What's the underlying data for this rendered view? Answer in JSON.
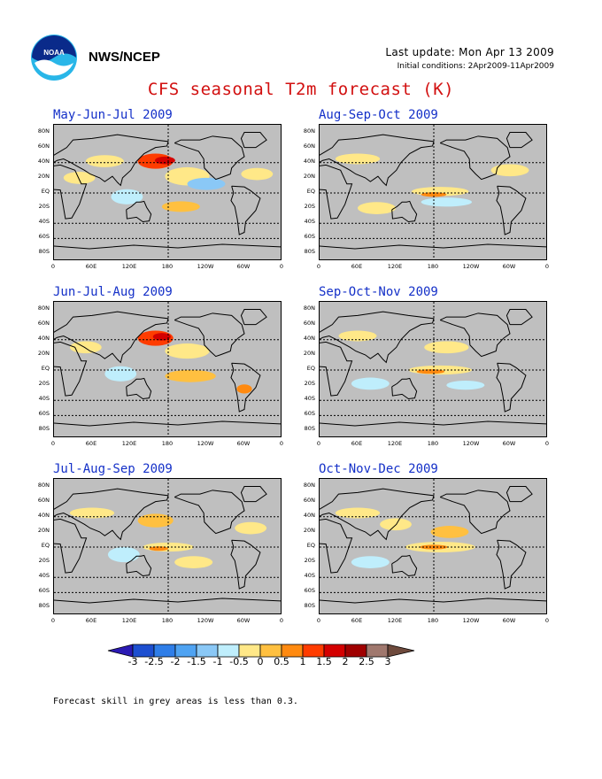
{
  "header": {
    "org": "NWS/NCEP",
    "last_update": "Last update: Mon Apr 13 2009",
    "initial_conditions": "Initial conditions: 2Apr2009-11Apr2009",
    "title": "CFS seasonal T2m forecast (K)"
  },
  "logo": {
    "name": "noaa-logo",
    "text": "NOAA"
  },
  "axes": {
    "lat_labels": [
      "80N",
      "60N",
      "40N",
      "20N",
      "EQ",
      "20S",
      "40S",
      "60S",
      "80S"
    ],
    "lon_labels": [
      "0",
      "60E",
      "120E",
      "180",
      "120W",
      "60W",
      "0"
    ]
  },
  "panels": [
    {
      "title": "May-Jun-Jul 2009"
    },
    {
      "title": "Aug-Sep-Oct 2009"
    },
    {
      "title": "Jun-Jul-Aug 2009"
    },
    {
      "title": "Sep-Oct-Nov 2009"
    },
    {
      "title": "Jul-Aug-Sep 2009"
    },
    {
      "title": "Oct-Nov-Dec 2009"
    }
  ],
  "colorbar": {
    "labels": [
      "-3",
      "-2.5",
      "-2",
      "-1.5",
      "-1",
      "-0.5",
      "0",
      "0.5",
      "1",
      "1.5",
      "2",
      "2.5",
      "3"
    ],
    "colors": [
      "#2b1ab4",
      "#1d4fd0",
      "#2f7ee8",
      "#4fa3f2",
      "#8ac8f6",
      "#bfeefc",
      "#ffe888",
      "#ffc040",
      "#ff8a10",
      "#ff3c00",
      "#d40000",
      "#a00000",
      "#a0786e",
      "#6e4a3c"
    ]
  },
  "footnote": "Forecast skill in grey areas is less than 0.3."
}
